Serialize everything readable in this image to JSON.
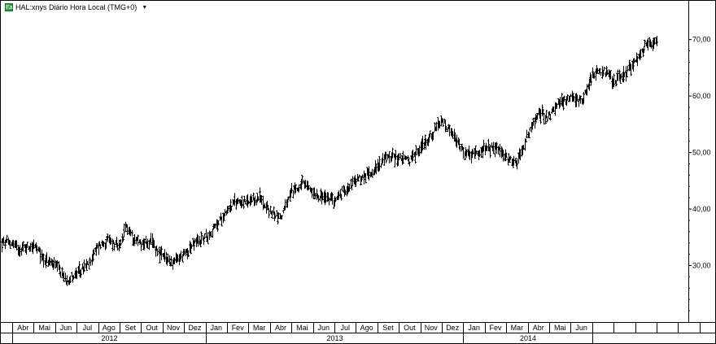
{
  "header": {
    "icon_label": "Ea",
    "title": "HAL:xnys Diário Hora Local (TMG+0)",
    "dropdown_glyph": "▼"
  },
  "chart_data": {
    "type": "ohlc",
    "ylim": [
      20,
      77
    ],
    "yticks": [
      30,
      40,
      50,
      60,
      70
    ],
    "ytick_labels": [
      "30,00",
      "40,00",
      "50,00",
      "60,00",
      "70,00"
    ],
    "months": [
      "Abr",
      "Mai",
      "Jun",
      "Jul",
      "Ago",
      "Set",
      "Out",
      "Nov",
      "Dez",
      "Jan",
      "Fev",
      "Mar",
      "Abr",
      "Mai",
      "Jun",
      "Jul",
      "Ago",
      "Set",
      "Out",
      "Nov",
      "Dez",
      "Jan",
      "Fev",
      "Mar",
      "Abr",
      "Mai",
      "Jun"
    ],
    "years": [
      {
        "label": "2012",
        "start": 0,
        "end": 9
      },
      {
        "label": "2013",
        "start": 9,
        "end": 21
      },
      {
        "label": "2014",
        "start": 21,
        "end": 27
      }
    ],
    "price_path": [
      [
        0,
        34
      ],
      [
        0.3,
        33
      ],
      [
        1,
        33.5
      ],
      [
        1.5,
        31
      ],
      [
        2,
        30
      ],
      [
        2.5,
        27.5
      ],
      [
        3,
        28.5
      ],
      [
        3.5,
        30
      ],
      [
        4,
        33.5
      ],
      [
        4.5,
        34.5
      ],
      [
        5,
        33
      ],
      [
        5.3,
        37
      ],
      [
        5.6,
        35
      ],
      [
        6,
        34
      ],
      [
        6.5,
        34
      ],
      [
        7,
        31.5
      ],
      [
        7.5,
        30.5
      ],
      [
        8,
        32
      ],
      [
        8.5,
        34
      ],
      [
        9,
        35
      ],
      [
        9.5,
        37
      ],
      [
        10,
        40
      ],
      [
        10.5,
        41.5
      ],
      [
        11,
        41
      ],
      [
        11.5,
        42
      ],
      [
        12,
        39.5
      ],
      [
        12.5,
        38.5
      ],
      [
        13,
        43
      ],
      [
        13.5,
        44.5
      ],
      [
        14,
        43
      ],
      [
        14.5,
        42
      ],
      [
        15,
        41.5
      ],
      [
        15.5,
        43.5
      ],
      [
        16,
        45
      ],
      [
        16.5,
        46
      ],
      [
        17,
        47.5
      ],
      [
        17.5,
        49.5
      ],
      [
        18,
        49
      ],
      [
        18.5,
        48.5
      ],
      [
        19,
        51
      ],
      [
        19.5,
        53
      ],
      [
        20,
        55.5
      ],
      [
        20.5,
        53
      ],
      [
        21,
        50
      ],
      [
        21.5,
        49.5
      ],
      [
        22,
        50.5
      ],
      [
        22.5,
        51
      ],
      [
        23,
        49
      ],
      [
        23.5,
        48.5
      ],
      [
        24,
        53
      ],
      [
        24.5,
        57
      ],
      [
        25,
        56.5
      ],
      [
        25.5,
        59
      ],
      [
        26,
        60
      ],
      [
        26.5,
        59
      ],
      [
        27,
        64
      ],
      [
        27.5,
        64.5
      ],
      [
        28,
        62.5
      ],
      [
        28.5,
        64
      ],
      [
        29,
        66
      ],
      [
        29.5,
        69
      ],
      [
        30,
        70
      ]
    ]
  }
}
